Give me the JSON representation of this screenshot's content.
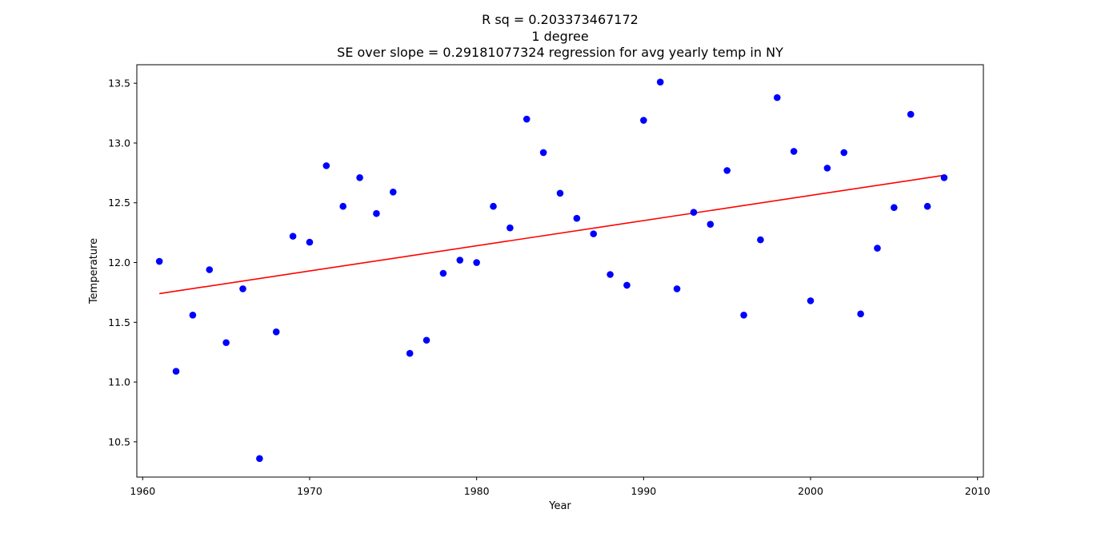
{
  "chart_data": {
    "type": "scatter",
    "title_lines": [
      "R sq = 0.203373467172",
      "1 degree",
      "SE over slope = 0.29181077324 regression for avg yearly temp in NY"
    ],
    "xlabel": "Year",
    "ylabel": "Temperature",
    "xlim": [
      1959.65,
      2010.35
    ],
    "ylim": [
      10.205,
      13.655
    ],
    "xticks": [
      1960,
      1970,
      1980,
      1990,
      2000,
      2010
    ],
    "yticks": [
      10.5,
      11.0,
      11.5,
      12.0,
      12.5,
      13.0,
      13.5
    ],
    "ytick_labels": [
      "10.5",
      "11.0",
      "11.5",
      "12.0",
      "12.5",
      "13.0",
      "13.5"
    ],
    "grid": false,
    "series": [
      {
        "kind": "points",
        "color": "#0000ff",
        "x": [
          1961,
          1962,
          1963,
          1964,
          1965,
          1966,
          1967,
          1968,
          1969,
          1970,
          1971,
          1972,
          1973,
          1974,
          1975,
          1976,
          1977,
          1978,
          1979,
          1980,
          1981,
          1982,
          1983,
          1984,
          1985,
          1986,
          1987,
          1988,
          1989,
          1990,
          1991,
          1992,
          1993,
          1994,
          1995,
          1996,
          1997,
          1998,
          1999,
          2000,
          2001,
          2002,
          2003,
          2004,
          2005,
          2006,
          2007,
          2008
        ],
        "y": [
          12.01,
          11.09,
          11.56,
          11.94,
          11.33,
          11.78,
          10.36,
          11.42,
          12.22,
          12.17,
          12.81,
          12.47,
          12.71,
          12.41,
          12.59,
          11.24,
          11.35,
          11.91,
          12.02,
          12.0,
          12.47,
          12.29,
          13.2,
          12.92,
          12.58,
          12.37,
          12.24,
          11.9,
          11.81,
          13.19,
          13.51,
          11.78,
          12.42,
          12.32,
          12.77,
          11.56,
          12.19,
          13.38,
          12.93,
          11.68,
          12.79,
          12.92,
          11.57,
          12.12,
          12.46,
          13.24,
          12.47,
          12.71
        ]
      },
      {
        "kind": "line",
        "color": "#ff0000",
        "x": [
          1961,
          2008
        ],
        "y": [
          11.74,
          12.73
        ]
      }
    ]
  }
}
